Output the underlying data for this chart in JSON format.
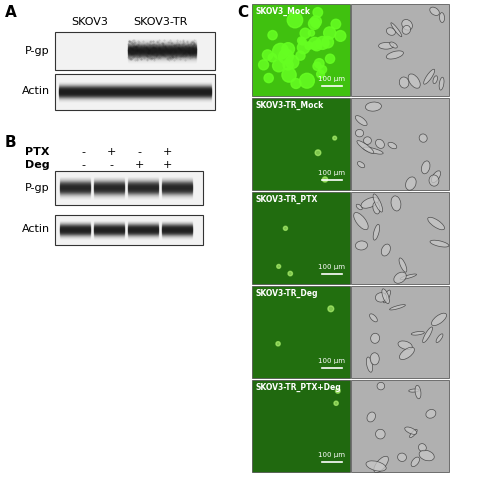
{
  "panel_A_label": "A",
  "panel_B_label": "B",
  "panel_C_label": "C",
  "panel_A_col_labels": [
    "SKOV3",
    "SKOV3-TR"
  ],
  "panel_A_row_labels": [
    "P-gp",
    "Actin"
  ],
  "panel_B_ptx_labels": [
    "-",
    "+",
    "-",
    "+"
  ],
  "panel_B_deg_labels": [
    "-",
    "-",
    "+",
    "+"
  ],
  "panel_B_row_labels": [
    "PTX",
    "Deg",
    "P-gp",
    "Actin"
  ],
  "panel_C_labels": [
    "SKOV3_Mock",
    "SKOV3-TR_Mock",
    "SKOV3-TR_PTX",
    "SKOV3-TR_Deg",
    "SKOV3-TR_PTX+Deg"
  ],
  "scale_bar_text": "100 μm",
  "bg_color": "#ffffff",
  "box_border": "#333333",
  "label_color": "#000000",
  "panel_label_fontsize": 11,
  "col_label_fontsize": 8,
  "row_label_fontsize": 8,
  "green_intensities": [
    0.85,
    0.12,
    0.08,
    0.1,
    0.05
  ]
}
